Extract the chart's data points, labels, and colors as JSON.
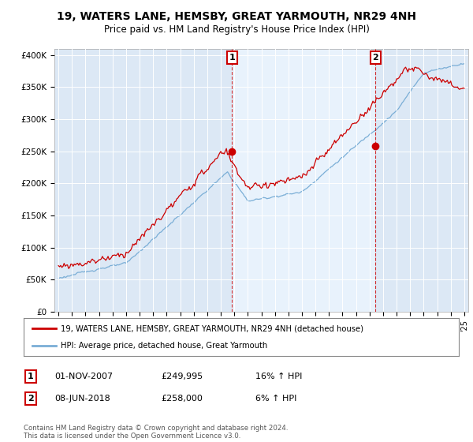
{
  "title": "19, WATERS LANE, HEMSBY, GREAT YARMOUTH, NR29 4NH",
  "subtitle": "Price paid vs. HM Land Registry's House Price Index (HPI)",
  "legend_line1": "19, WATERS LANE, HEMSBY, GREAT YARMOUTH, NR29 4NH (detached house)",
  "legend_line2": "HPI: Average price, detached house, Great Yarmouth",
  "annotation1_date": "01-NOV-2007",
  "annotation1_price": "£249,995",
  "annotation1_hpi": "16% ↑ HPI",
  "annotation2_date": "08-JUN-2018",
  "annotation2_price": "£258,000",
  "annotation2_hpi": "6% ↑ HPI",
  "footnote": "Contains HM Land Registry data © Crown copyright and database right 2024.\nThis data is licensed under the Open Government Licence v3.0.",
  "hpi_color": "#7aaed6",
  "price_color": "#cc0000",
  "marker1_x": 2007.83,
  "marker2_x": 2018.44,
  "marker1_y": 249995,
  "marker2_y": 258000,
  "ylim": [
    0,
    410000
  ],
  "xlim_start": 1994.7,
  "xlim_end": 2025.3,
  "plot_bg": "#dce8f5",
  "shaded_bg": "#e8f2fc",
  "fig_bg": "#ffffff"
}
